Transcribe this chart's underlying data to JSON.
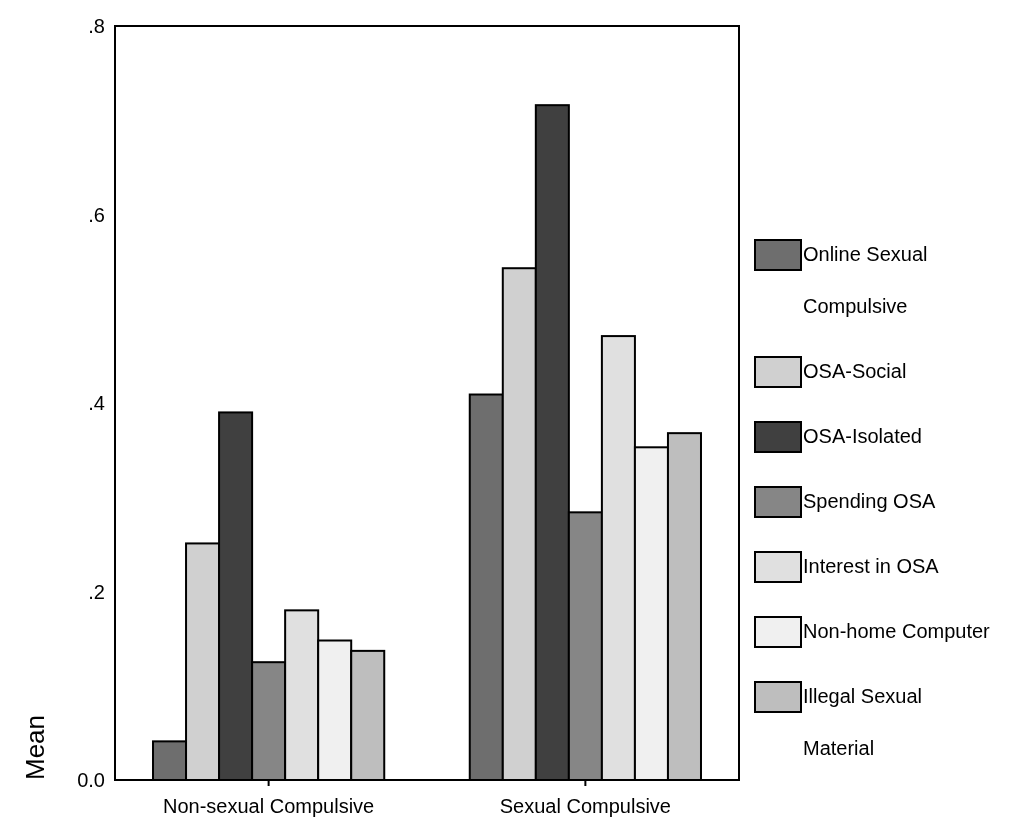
{
  "chart_data": {
    "type": "bar",
    "ylabel": "Mean",
    "categories": [
      "Non-sexual Compulsive",
      "Sexual Compulsive"
    ],
    "series": [
      {
        "name": "Online Sexual Compulsive",
        "color": "#6e6e6e",
        "values": [
          0.041,
          0.409
        ]
      },
      {
        "name": "OSA-Social",
        "color": "#d0d0d0",
        "values": [
          0.251,
          0.543
        ]
      },
      {
        "name": "OSA-Isolated",
        "color": "#404040",
        "values": [
          0.39,
          0.716
        ]
      },
      {
        "name": "Spending OSA",
        "color": "#868686",
        "values": [
          0.125,
          0.284
        ]
      },
      {
        "name": "Interest in OSA",
        "color": "#e0e0e0",
        "values": [
          0.18,
          0.471
        ]
      },
      {
        "name": "Non-home Computer",
        "color": "#f0f0f0",
        "values": [
          0.148,
          0.353
        ]
      },
      {
        "name": "Illegal Sexual Material",
        "color": "#bebebe",
        "values": [
          0.137,
          0.368
        ]
      }
    ],
    "ylim": [
      0,
      0.8
    ],
    "yticks": [
      {
        "value": 0,
        "label": "0.0"
      },
      {
        "value": 0.2,
        "label": ".2"
      },
      {
        "value": 0.4,
        "label": ".4"
      },
      {
        "value": 0.6,
        "label": ".6"
      },
      {
        "value": 0.8,
        "label": ".8"
      }
    ],
    "legend": "right",
    "grid": false
  }
}
